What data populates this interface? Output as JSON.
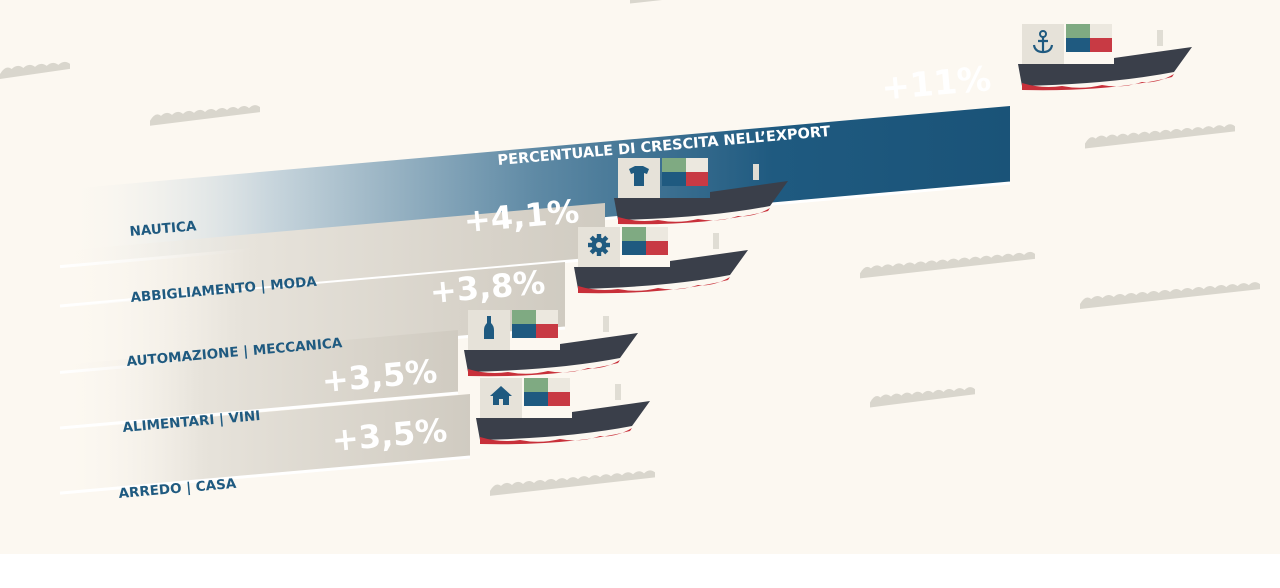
{
  "chart_data": {
    "type": "bar",
    "title": "PERCENTUALE DI CRESCITA NELL’EXPORT",
    "categories": [
      "NAUTICA",
      "ABBIGLIAMENTO | MODA",
      "AUTOMAZIONE | MECCANICA",
      "ALIMENTARI | VINI",
      "ARREDO | CASA"
    ],
    "values": [
      11,
      4.1,
      3.8,
      3.5,
      3.5
    ],
    "value_labels": [
      "+11%",
      "+4,1%",
      "+3,8%",
      "+3,5%",
      "+3,5%"
    ],
    "icons": [
      "anchor-icon",
      "tshirt-icon",
      "gear-icon",
      "wine-bottle-icon",
      "house-icon"
    ],
    "unit": "%",
    "colors": {
      "highlight_bar": "#1f5a80",
      "bar": "#d3cec4",
      "label_text": "#1f5a80",
      "value_text": "#ffffff",
      "background": "#fcf8f1",
      "ship_hull": "#3a3f4a",
      "ship_waterline": "#c8303a",
      "container_green": "#7faa82",
      "container_red": "#c83a44",
      "container_blue": "#1f5a80",
      "container_light": "#e0ddd4"
    }
  }
}
